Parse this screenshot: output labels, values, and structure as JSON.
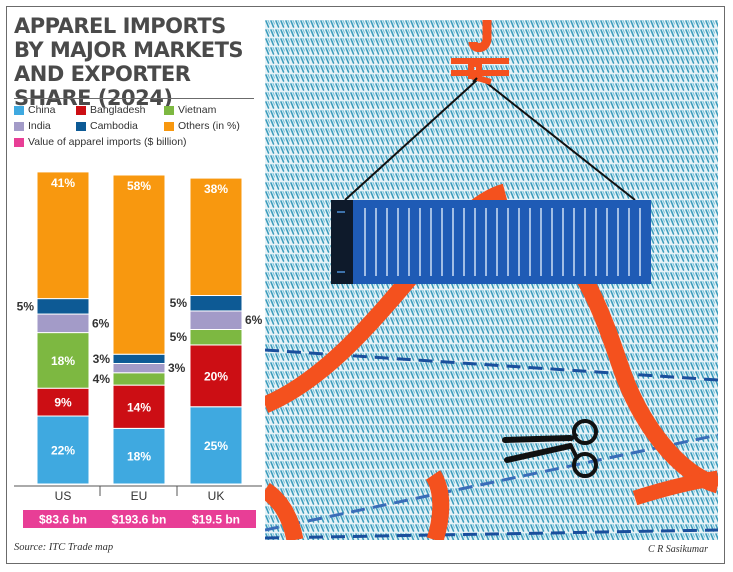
{
  "title": "APPAREL IMPORTS BY MAJOR MARKETS AND EXPORTER SHARE (2024)",
  "source": "Source: ITC Trade map",
  "credit": "C R Sasikumar",
  "chart_data": {
    "type": "bar",
    "stacked": true,
    "unit": "%",
    "categories": [
      "US",
      "EU",
      "UK"
    ],
    "series": [
      {
        "name": "China",
        "color": "#3fa9e0",
        "values": [
          22,
          18,
          25
        ]
      },
      {
        "name": "Bangladesh",
        "color": "#cc0e14",
        "values": [
          9,
          14,
          20
        ]
      },
      {
        "name": "Vietnam",
        "color": "#7db841",
        "values": [
          18,
          4,
          5
        ]
      },
      {
        "name": "India",
        "color": "#a39bc8",
        "values": [
          6,
          3,
          6
        ]
      },
      {
        "name": "Cambodia",
        "color": "#0d5a95",
        "values": [
          5,
          3,
          5
        ]
      },
      {
        "name": "Others (in %)",
        "color": "#f8980f",
        "values": [
          41,
          58,
          38
        ]
      }
    ],
    "totals": {
      "name": "Value of apparel imports ($ billion)",
      "color": "#e83e96",
      "labels": [
        "$83.6 bn",
        "$193.6 bn",
        "$19.5 bn"
      ]
    },
    "legend_order": [
      "China",
      "Bangladesh",
      "Vietnam",
      "India",
      "Cambodia",
      "Others (in %)"
    ]
  }
}
